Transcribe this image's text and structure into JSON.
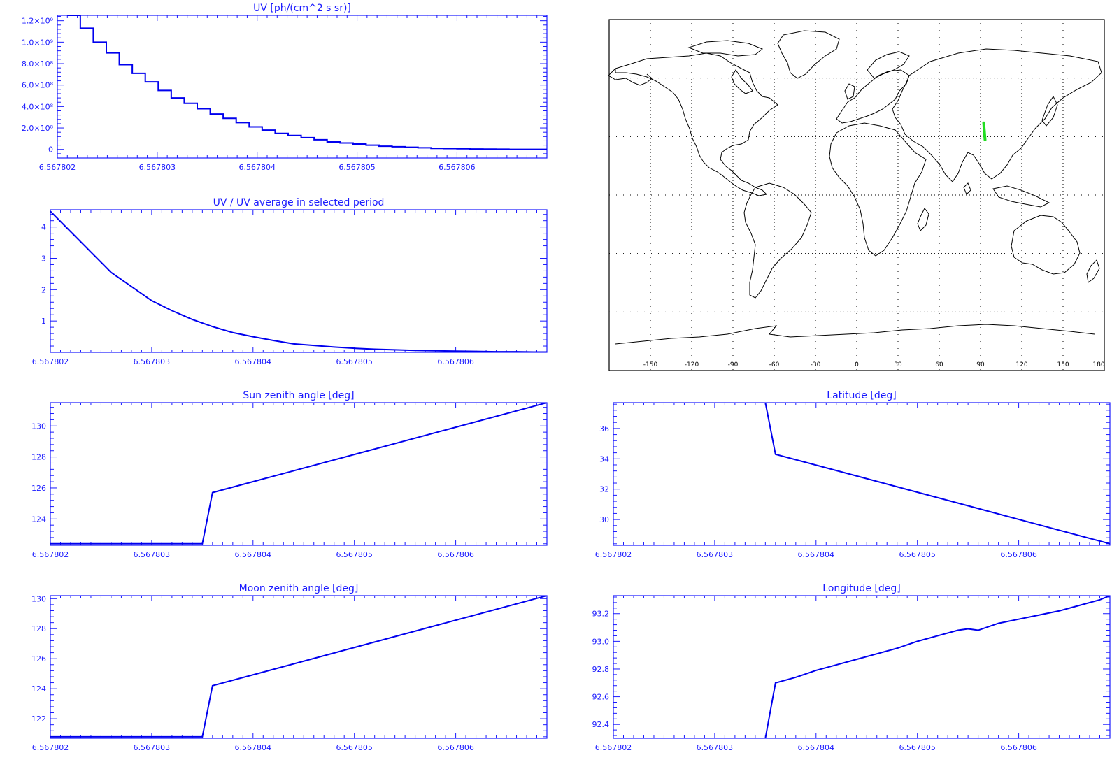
{
  "colors": {
    "axis": "#1a1aff",
    "series": "#0000ee",
    "track": "#22dd22",
    "map_line": "#000000"
  },
  "map": {
    "lon_ticks": [
      "-150",
      "-120",
      "-90",
      "-60",
      "-30",
      "0",
      "30",
      "60",
      "90",
      "120",
      "150",
      "180"
    ],
    "lon_values": [
      -150,
      -120,
      -90,
      -60,
      -30,
      0,
      30,
      60,
      90,
      120,
      150,
      180
    ],
    "lat_grid": [
      60,
      30,
      0,
      -30,
      -60
    ],
    "track": {
      "lon": [
        92.3,
        93.3
      ],
      "lat": [
        37.0,
        28.3
      ]
    }
  },
  "chart_data": [
    {
      "id": "uv",
      "type": "line",
      "step": true,
      "title": "UV [ph/(cm^2 s sr)]",
      "xlim": [
        6.567802,
        6.5678069
      ],
      "ylim": [
        -80000000,
        1250000000
      ],
      "xticks": [
        6.567802,
        6.567803,
        6.567804,
        6.567805,
        6.567806
      ],
      "xtick_labels": [
        "6.567802",
        "6.567803",
        "6.567804",
        "6.567805",
        "6.567806"
      ],
      "yticks": [
        0,
        200000000,
        400000000,
        600000000,
        800000000,
        1000000000,
        1200000000
      ],
      "ytick_labels": [
        "0",
        "2.0×10⁸",
        "4.0×10⁸",
        "6.0×10⁸",
        "8.0×10⁸",
        "1.0×10⁹",
        "1.2×10⁹"
      ],
      "x": [
        6.5678021,
        6.56780223,
        6.56780236,
        6.56780249,
        6.56780262,
        6.56780275,
        6.56780288,
        6.56780301,
        6.56780314,
        6.56780327,
        6.5678034,
        6.56780353,
        6.56780366,
        6.56780379,
        6.56780392,
        6.56780405,
        6.56780418,
        6.56780431,
        6.56780444,
        6.56780457,
        6.5678047,
        6.56780483,
        6.56780496,
        6.56780509,
        6.56780522,
        6.56780535,
        6.56780548,
        6.56780561,
        6.56780574,
        6.56780587,
        6.567806,
        6.56780613,
        6.56780626,
        6.56780639,
        6.56780652,
        6.56780665,
        6.56780678,
        6.5678069
      ],
      "values": [
        1250000000,
        1130000000,
        1000000000,
        900000000,
        790000000,
        710000000,
        630000000,
        550000000,
        480000000,
        430000000,
        380000000,
        330000000,
        290000000,
        250000000,
        210000000,
        180000000,
        150000000,
        130000000,
        110000000,
        90000000,
        70000000,
        60000000,
        50000000,
        40000000,
        30000000,
        25000000,
        20000000,
        15000000,
        10000000,
        8000000,
        6000000,
        4000000,
        3000000,
        2000000,
        1000000,
        1000000,
        1000000,
        1000000
      ]
    },
    {
      "id": "uvratio",
      "type": "line",
      "title": "UV / UV average in selected period",
      "xlim": [
        6.567802,
        6.5678069
      ],
      "ylim": [
        0,
        4.55
      ],
      "xticks": [
        6.567802,
        6.567803,
        6.567804,
        6.567805,
        6.567806
      ],
      "xtick_labels": [
        "6.567802",
        "6.567803",
        "6.567804",
        "6.567805",
        "6.567806"
      ],
      "yticks": [
        1,
        2,
        3,
        4
      ],
      "ytick_labels": [
        "1",
        "2",
        "3",
        "4"
      ],
      "x": [
        6.567802,
        6.5678022,
        6.5678024,
        6.5678026,
        6.5678028,
        6.567803,
        6.5678032,
        6.5678034,
        6.5678036,
        6.5678038,
        6.567804,
        6.5678042,
        6.5678044,
        6.5678046,
        6.5678048,
        6.567805,
        6.5678052,
        6.5678054,
        6.5678056,
        6.5678058,
        6.567806,
        6.5678062,
        6.5678064,
        6.5678066,
        6.5678068,
        6.5678069
      ],
      "values": [
        4.5,
        3.85,
        3.2,
        2.55,
        2.1,
        1.65,
        1.33,
        1.05,
        0.82,
        0.63,
        0.5,
        0.38,
        0.27,
        0.22,
        0.17,
        0.13,
        0.1,
        0.08,
        0.06,
        0.05,
        0.04,
        0.03,
        0.02,
        0.02,
        0.01,
        0.01
      ]
    },
    {
      "id": "sunzen",
      "type": "line",
      "title": "Sun zenith angle [deg]",
      "xlim": [
        6.567802,
        6.5678069
      ],
      "ylim": [
        122.3,
        131.5
      ],
      "xticks": [
        6.567802,
        6.567803,
        6.567804,
        6.567805,
        6.567806
      ],
      "xtick_labels": [
        "6.567802",
        "6.567803",
        "6.567804",
        "6.567805",
        "6.567806"
      ],
      "yticks": [
        124,
        126,
        128,
        130
      ],
      "ytick_labels": [
        "124",
        "126",
        "128",
        "130"
      ],
      "x": [
        6.567802,
        6.5678035,
        6.5678036,
        6.5678069
      ],
      "values": [
        122.4,
        122.4,
        125.7,
        131.5
      ]
    },
    {
      "id": "latitude",
      "type": "line",
      "title": "Latitude [deg]",
      "xlim": [
        6.567802,
        6.5678069
      ],
      "ylim": [
        28.3,
        37.7
      ],
      "xticks": [
        6.567802,
        6.567803,
        6.567804,
        6.567805,
        6.567806
      ],
      "xtick_labels": [
        "6.567802",
        "6.567803",
        "6.567804",
        "6.567805",
        "6.567806"
      ],
      "yticks": [
        30,
        32,
        34,
        36
      ],
      "ytick_labels": [
        "30",
        "32",
        "34",
        "36"
      ],
      "x": [
        6.567802,
        6.5678035,
        6.5678036,
        6.5678069
      ],
      "values": [
        37.7,
        37.7,
        34.3,
        28.4
      ]
    },
    {
      "id": "moonzen",
      "type": "line",
      "title": "Moon zenith angle [deg]",
      "xlim": [
        6.567802,
        6.5678069
      ],
      "ylim": [
        120.7,
        130.2
      ],
      "xticks": [
        6.567802,
        6.567803,
        6.567804,
        6.567805,
        6.567806
      ],
      "xtick_labels": [
        "6.567802",
        "6.567803",
        "6.567804",
        "6.567805",
        "6.567806"
      ],
      "yticks": [
        122,
        124,
        126,
        128,
        130
      ],
      "ytick_labels": [
        "122",
        "124",
        "126",
        "128",
        "130"
      ],
      "x": [
        6.567802,
        6.5678035,
        6.5678036,
        6.5678069
      ],
      "values": [
        120.8,
        120.8,
        124.2,
        130.2
      ]
    },
    {
      "id": "longitude",
      "type": "line",
      "title": "Longitude [deg]",
      "xlim": [
        6.567802,
        6.5678069
      ],
      "ylim": [
        92.3,
        93.33
      ],
      "xticks": [
        6.567802,
        6.567803,
        6.567804,
        6.567805,
        6.567806
      ],
      "xtick_labels": [
        "6.567802",
        "6.567803",
        "6.567804",
        "6.567805",
        "6.567806"
      ],
      "yticks": [
        92.4,
        92.6,
        92.8,
        93.0,
        93.2
      ],
      "ytick_labels": [
        "92.4",
        "92.6",
        "92.8",
        "93.0",
        "93.2"
      ],
      "x": [
        6.567802,
        6.5678035,
        6.5678036,
        6.5678038,
        6.567804,
        6.5678042,
        6.5678044,
        6.5678046,
        6.5678048,
        6.567805,
        6.5678052,
        6.5678054,
        6.5678055,
        6.5678056,
        6.5678058,
        6.567806,
        6.5678062,
        6.5678064,
        6.5678066,
        6.5678068,
        6.5678069
      ],
      "values": [
        92.3,
        92.3,
        92.7,
        92.74,
        92.79,
        92.83,
        92.87,
        92.91,
        92.95,
        93.0,
        93.04,
        93.08,
        93.09,
        93.08,
        93.13,
        93.16,
        93.19,
        93.22,
        93.26,
        93.3,
        93.33
      ]
    }
  ]
}
